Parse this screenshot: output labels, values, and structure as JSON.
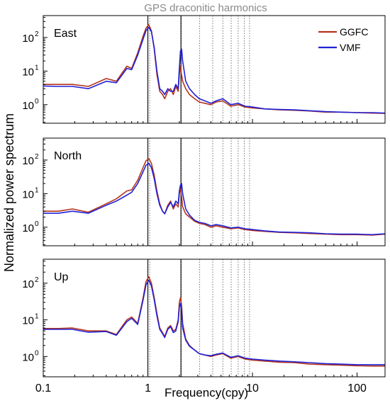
{
  "figure": {
    "header": "GPS draconitic harmonics",
    "ylabel": "Normalized power spectrum",
    "xlabel": "Frequency(cpy)"
  },
  "legend": [
    {
      "name": "GGFC",
      "color": "#b5341c"
    },
    {
      "name": "VMF",
      "color": "#2121d6"
    }
  ],
  "x_ticks": [
    {
      "value": 0.1,
      "label": "0.1"
    },
    {
      "value": 1,
      "label": "1"
    },
    {
      "value": 10,
      "label": "10"
    },
    {
      "value": 100,
      "label": "100"
    }
  ],
  "y_ticks": [
    {
      "value": 1,
      "label": "10",
      "exp": "0"
    },
    {
      "value": 10,
      "label": "10",
      "exp": "1"
    },
    {
      "value": 100,
      "label": "10",
      "exp": "2"
    }
  ],
  "chart_data": [
    {
      "type": "line",
      "panel_label": "East",
      "xscale": "log",
      "yscale": "log",
      "xlim": [
        0.1,
        185
      ],
      "ylim": [
        0.28,
        450
      ],
      "vlines_solid": [
        1.0,
        2.07
      ],
      "vlines_dotted": [
        1.04,
        2.09,
        3.13,
        4.17,
        5.21,
        6.26,
        7.3,
        8.34,
        9.38
      ],
      "series": [
        {
          "name": "GGFC",
          "x": [
            0.1,
            0.14,
            0.19,
            0.27,
            0.4,
            0.5,
            0.63,
            0.7,
            0.8,
            0.9,
            0.96,
            1.02,
            1.08,
            1.15,
            1.22,
            1.3,
            1.38,
            1.45,
            1.55,
            1.65,
            1.75,
            1.85,
            1.95,
            2.0,
            2.05,
            2.08,
            2.15,
            2.3,
            2.5,
            2.8,
            3.1,
            3.5,
            4.0,
            4.5,
            5.2,
            6.2,
            7.3,
            8.5,
            10,
            13,
            18,
            25,
            35,
            50,
            70,
            100,
            140,
            185
          ],
          "y": [
            4.0,
            4.0,
            4.0,
            3.5,
            6.0,
            5.0,
            14,
            12,
            35,
            110,
            190,
            240,
            160,
            45,
            8,
            2.5,
            2.0,
            1.5,
            2.5,
            3.0,
            2.0,
            3.5,
            2.5,
            8.0,
            14,
            9,
            5.0,
            3.0,
            2.0,
            1.5,
            1.2,
            1.1,
            1.0,
            1.2,
            1.3,
            0.9,
            1.0,
            0.85,
            0.8,
            0.75,
            0.7,
            0.68,
            0.65,
            0.6,
            0.6,
            0.58,
            0.56,
            0.55
          ]
        },
        {
          "name": "VMF",
          "x": [
            0.1,
            0.14,
            0.19,
            0.27,
            0.4,
            0.5,
            0.63,
            0.7,
            0.8,
            0.9,
            0.96,
            1.02,
            1.08,
            1.15,
            1.22,
            1.3,
            1.38,
            1.45,
            1.55,
            1.65,
            1.75,
            1.85,
            1.95,
            2.0,
            2.05,
            2.1,
            2.15,
            2.3,
            2.5,
            2.8,
            3.1,
            3.5,
            4.0,
            4.5,
            5.2,
            6.2,
            7.3,
            8.5,
            10,
            13,
            18,
            25,
            35,
            50,
            70,
            100,
            140,
            185
          ],
          "y": [
            3.6,
            3.5,
            3.5,
            3.0,
            5.0,
            4.5,
            12,
            11,
            30,
            90,
            160,
            200,
            150,
            50,
            10,
            3.0,
            2.5,
            2.0,
            3.0,
            2.5,
            2.5,
            4.0,
            3.0,
            12,
            40,
            45,
            20,
            5.0,
            3.0,
            2.0,
            1.5,
            1.3,
            1.1,
            1.3,
            1.5,
            1.0,
            1.1,
            0.9,
            0.85,
            0.75,
            0.72,
            0.7,
            0.66,
            0.62,
            0.6,
            0.58,
            0.58,
            0.56
          ]
        }
      ]
    },
    {
      "type": "line",
      "panel_label": "North",
      "xscale": "log",
      "yscale": "log",
      "xlim": [
        0.1,
        185
      ],
      "ylim": [
        0.28,
        450
      ],
      "vlines_solid": [
        1.0,
        2.07
      ],
      "vlines_dotted": [
        1.04,
        2.09,
        3.13,
        4.17,
        5.21,
        6.26,
        7.3,
        8.34,
        9.38
      ],
      "series": [
        {
          "name": "GGFC",
          "x": [
            0.1,
            0.14,
            0.19,
            0.27,
            0.4,
            0.5,
            0.63,
            0.7,
            0.8,
            0.9,
            0.96,
            1.02,
            1.08,
            1.15,
            1.22,
            1.3,
            1.38,
            1.45,
            1.55,
            1.65,
            1.75,
            1.85,
            1.95,
            2.0,
            2.05,
            2.1,
            2.15,
            2.3,
            2.5,
            2.8,
            3.1,
            3.5,
            4.0,
            4.5,
            5.2,
            6.2,
            7.3,
            8.5,
            10,
            13,
            18,
            25,
            35,
            50,
            70,
            100,
            140,
            185
          ],
          "y": [
            3.0,
            3.0,
            3.5,
            2.8,
            5.0,
            7.0,
            12,
            13,
            25,
            60,
            95,
            110,
            80,
            35,
            12,
            5.0,
            3.0,
            2.5,
            4.5,
            6.0,
            3.5,
            5.0,
            4.0,
            10,
            14,
            8,
            4.0,
            2.5,
            2.0,
            1.5,
            1.3,
            1.2,
            1.0,
            1.1,
            1.0,
            0.9,
            0.95,
            0.85,
            0.8,
            0.75,
            0.7,
            0.68,
            0.65,
            0.62,
            0.6,
            0.6,
            0.58,
            0.62
          ]
        },
        {
          "name": "VMF",
          "x": [
            0.1,
            0.14,
            0.19,
            0.27,
            0.4,
            0.5,
            0.63,
            0.7,
            0.8,
            0.9,
            0.96,
            1.02,
            1.08,
            1.15,
            1.22,
            1.3,
            1.38,
            1.45,
            1.55,
            1.65,
            1.75,
            1.85,
            1.95,
            2.0,
            2.05,
            2.1,
            2.15,
            2.3,
            2.5,
            2.8,
            3.1,
            3.5,
            4.0,
            4.5,
            5.2,
            6.2,
            7.3,
            8.5,
            10,
            13,
            18,
            25,
            35,
            50,
            70,
            100,
            140,
            185
          ],
          "y": [
            2.6,
            2.6,
            3.0,
            2.6,
            4.5,
            6.0,
            9,
            11,
            20,
            45,
            70,
            80,
            60,
            28,
            10,
            4.5,
            3.0,
            2.5,
            4.0,
            5.5,
            4.0,
            6.0,
            5.0,
            12,
            18,
            20,
            10,
            3.5,
            2.3,
            1.6,
            1.4,
            1.3,
            1.1,
            1.2,
            1.1,
            0.95,
            1.0,
            0.9,
            0.85,
            0.78,
            0.72,
            0.7,
            0.68,
            0.64,
            0.62,
            0.62,
            0.6,
            0.64
          ]
        }
      ]
    },
    {
      "type": "line",
      "panel_label": "Up",
      "xscale": "log",
      "yscale": "log",
      "xlim": [
        0.1,
        185
      ],
      "ylim": [
        0.28,
        450
      ],
      "vlines_solid": [
        1.0,
        2.07
      ],
      "vlines_dotted": [
        1.04,
        2.09,
        3.13,
        4.17,
        5.21,
        6.26,
        7.3,
        8.34,
        9.38
      ],
      "series": [
        {
          "name": "GGFC",
          "x": [
            0.1,
            0.14,
            0.19,
            0.27,
            0.4,
            0.5,
            0.63,
            0.7,
            0.8,
            0.9,
            0.96,
            1.02,
            1.08,
            1.15,
            1.22,
            1.3,
            1.38,
            1.45,
            1.55,
            1.65,
            1.75,
            1.85,
            1.95,
            2.0,
            2.05,
            2.1,
            2.15,
            2.3,
            2.5,
            2.8,
            3.1,
            3.5,
            4.0,
            4.5,
            5.2,
            6.2,
            7.3,
            8.5,
            10,
            13,
            18,
            25,
            35,
            50,
            70,
            100,
            140,
            185
          ],
          "y": [
            5.8,
            5.8,
            6.0,
            5.0,
            5.0,
            4.0,
            10,
            12,
            8,
            40,
            110,
            150,
            100,
            40,
            15,
            6.0,
            4.5,
            3.5,
            6.0,
            7.0,
            5.0,
            5.5,
            10,
            30,
            40,
            25,
            8,
            3.0,
            2.0,
            1.5,
            1.2,
            1.1,
            1.0,
            1.1,
            1.2,
            0.9,
            1.0,
            0.85,
            0.8,
            0.75,
            0.7,
            0.68,
            0.62,
            0.6,
            0.58,
            0.56,
            0.55,
            0.55
          ]
        },
        {
          "name": "VMF",
          "x": [
            0.1,
            0.14,
            0.19,
            0.27,
            0.4,
            0.5,
            0.63,
            0.7,
            0.8,
            0.9,
            0.96,
            1.02,
            1.08,
            1.15,
            1.22,
            1.3,
            1.38,
            1.45,
            1.55,
            1.65,
            1.75,
            1.85,
            1.95,
            2.0,
            2.05,
            2.1,
            2.15,
            2.3,
            2.5,
            2.8,
            3.1,
            3.5,
            4.0,
            4.5,
            5.2,
            6.2,
            7.3,
            8.5,
            10,
            13,
            18,
            25,
            35,
            50,
            70,
            100,
            140,
            185
          ],
          "y": [
            5.5,
            5.5,
            5.5,
            4.6,
            4.8,
            3.8,
            9,
            11,
            7.5,
            35,
            90,
            120,
            85,
            35,
            13,
            5.5,
            4.2,
            3.3,
            5.5,
            6.5,
            4.5,
            5.0,
            9,
            22,
            28,
            18,
            6,
            2.8,
            1.9,
            1.5,
            1.2,
            1.1,
            1.05,
            1.15,
            1.25,
            0.95,
            1.05,
            0.9,
            0.85,
            0.8,
            0.75,
            0.72,
            0.68,
            0.64,
            0.62,
            0.6,
            0.6,
            0.6
          ]
        }
      ]
    }
  ]
}
